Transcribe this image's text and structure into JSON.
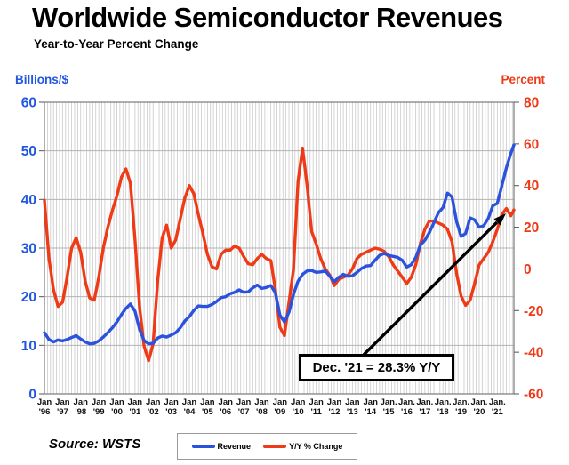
{
  "title": "Worldwide Semiconductor Revenues",
  "subtitle": "Year-to-Year Percent Change",
  "source": "Source: WSTS",
  "annotation": {
    "text": "Dec. '21 = 28.3% Y/Y"
  },
  "left_axis": {
    "label": "Billions/$",
    "color": "#2156e2",
    "ticks": [
      0,
      10,
      20,
      30,
      40,
      50,
      60
    ]
  },
  "right_axis": {
    "label": "Percent",
    "color": "#ee3a16",
    "ticks": [
      -60,
      -40,
      -20,
      0,
      20,
      40,
      60,
      80
    ]
  },
  "x_axis": {
    "labels": [
      {
        "l1": "Jan",
        "l2": "'96"
      },
      {
        "l1": "Jan",
        "l2": "'97"
      },
      {
        "l1": "Jan",
        "l2": "'98"
      },
      {
        "l1": "Jan",
        "l2": "'99"
      },
      {
        "l1": "Jan",
        "l2": "'00"
      },
      {
        "l1": "Jan",
        "l2": "'01"
      },
      {
        "l1": "Jan",
        "l2": "'02"
      },
      {
        "l1": "Jan",
        "l2": "'03"
      },
      {
        "l1": "Jan",
        "l2": "'04"
      },
      {
        "l1": "Jan",
        "l2": "'05"
      },
      {
        "l1": "Jan",
        "l2": "'06"
      },
      {
        "l1": "Jan",
        "l2": "'07"
      },
      {
        "l1": "Jan",
        "l2": "'08"
      },
      {
        "l1": "Jan",
        "l2": "'09"
      },
      {
        "l1": "Jan",
        "l2": "'10"
      },
      {
        "l1": "Jan",
        "l2": "'11"
      },
      {
        "l1": "Jan",
        "l2": "'12"
      },
      {
        "l1": "Jan",
        "l2": "'13"
      },
      {
        "l1": "Jan",
        "l2": "'14"
      },
      {
        "l1": "Jan.",
        "l2": "'15"
      },
      {
        "l1": "Jan.",
        "l2": "'16"
      },
      {
        "l1": "Jan.",
        "l2": "'17"
      },
      {
        "l1": "Jan.",
        "l2": "'18"
      },
      {
        "l1": "Jan.",
        "l2": "'19"
      },
      {
        "l1": "Jan.",
        "l2": "'20"
      },
      {
        "l1": "Jan.",
        "l2": "'21"
      }
    ]
  },
  "legend": {
    "items": [
      {
        "label": "Revenue",
        "color": "#2a52dd"
      },
      {
        "label": "Y/Y % Change",
        "color": "#ee3a16"
      }
    ]
  },
  "colors": {
    "revenue_line": "#2a52dd",
    "yoy_line": "#ee3a16",
    "gridline": "#c9c9c9",
    "hgridline": "#b3b3b3",
    "plot_border": "#7a7a7a",
    "x_label": "#111111",
    "arrow": "#000000"
  },
  "chart_data": {
    "type": "line",
    "title": "Worldwide Semiconductor Revenues",
    "subtitle": "Year-to-Year Percent Change",
    "x_range": "Jan 1996 - Dec 2021, quarterly samples (last point Dec '21)",
    "left_ylim": [
      0,
      60
    ],
    "right_ylim": [
      -60,
      80
    ],
    "grid": "vertical monthly stripes + horizontal every 10 (left axis)",
    "legend_position": "bottom-center",
    "highlight": "Dec. '21 = 28.3% Y/Y",
    "series": [
      {
        "name": "Revenue",
        "axis": "left",
        "unit": "billions $ per month (3-month avg)",
        "color": "#2a52dd",
        "values": [
          12.6,
          11.2,
          10.7,
          11.1,
          10.9,
          11.2,
          11.6,
          12.0,
          11.3,
          10.7,
          10.3,
          10.4,
          10.9,
          11.7,
          12.6,
          13.6,
          14.8,
          16.3,
          17.6,
          18.5,
          17.0,
          13.3,
          11.0,
          10.3,
          10.4,
          11.5,
          11.9,
          11.7,
          12.1,
          12.6,
          13.6,
          15.0,
          15.9,
          17.2,
          18.1,
          18.0,
          18.0,
          18.4,
          19.0,
          19.8,
          20.0,
          20.6,
          20.9,
          21.4,
          20.9,
          21.0,
          21.8,
          22.4,
          21.7,
          21.9,
          22.3,
          20.8,
          16.2,
          14.8,
          16.8,
          20.5,
          23.2,
          24.6,
          25.3,
          25.4,
          25.0,
          25.1,
          25.3,
          24.2,
          23.1,
          24.0,
          24.6,
          24.2,
          24.3,
          25.0,
          25.8,
          26.3,
          26.4,
          27.5,
          28.5,
          28.9,
          28.5,
          28.3,
          28.1,
          27.5,
          26.1,
          26.6,
          28.1,
          30.6,
          31.6,
          33.2,
          35.2,
          37.3,
          38.3,
          41.3,
          40.5,
          35.5,
          32.4,
          33.0,
          36.2,
          35.8,
          34.3,
          34.6,
          36.1,
          38.7,
          39.2,
          42.8,
          46.5,
          49.5,
          51.2
        ]
      },
      {
        "name": "Y/Y % Change",
        "axis": "right",
        "unit": "percent",
        "color": "#ee3a16",
        "values": [
          33,
          5,
          -10,
          -18,
          -16,
          -4,
          10,
          15,
          8,
          -6,
          -14,
          -15,
          -4,
          10,
          20,
          28,
          35,
          44,
          48,
          41,
          14,
          -18,
          -37,
          -44,
          -36,
          -6,
          15,
          21,
          10,
          14,
          24,
          34,
          40,
          36,
          26,
          17,
          7,
          1,
          0,
          7,
          9,
          9,
          11,
          10,
          6,
          2.5,
          2,
          5,
          7,
          5,
          4,
          -10,
          -28,
          -32,
          -16,
          0,
          42,
          58,
          40,
          18,
          12,
          5,
          0,
          -3,
          -8,
          -5,
          -4,
          -3,
          0,
          5,
          7,
          8,
          9,
          10,
          9.5,
          8.5,
          6,
          2,
          -1,
          -4,
          -7,
          -4,
          2,
          12,
          19,
          23,
          23,
          22,
          21,
          19,
          13,
          -2,
          -13,
          -17.5,
          -15,
          -7,
          2,
          5,
          8,
          13,
          19,
          26,
          29,
          25.5,
          28.3
        ]
      }
    ]
  }
}
